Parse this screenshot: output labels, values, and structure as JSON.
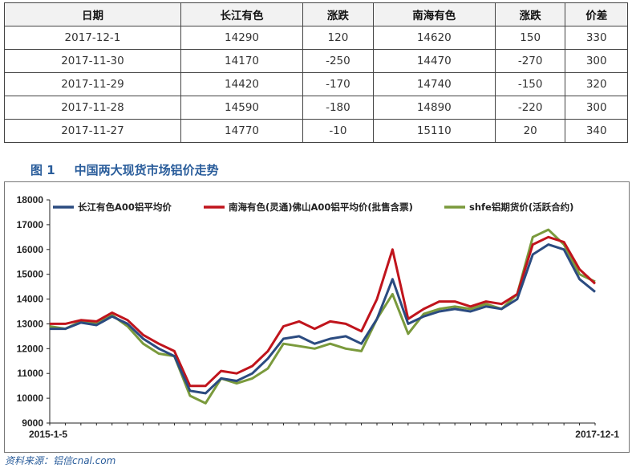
{
  "table": {
    "headers": [
      "日期",
      "长江有色",
      "涨跌",
      "南海有色",
      "涨跌",
      "价差"
    ],
    "rows": [
      [
        "2017-12-1",
        "14290",
        "120",
        "14620",
        "150",
        "330"
      ],
      [
        "2017-11-30",
        "14170",
        "-250",
        "14470",
        "-270",
        "300"
      ],
      [
        "2017-11-29",
        "14420",
        "-170",
        "14740",
        "-150",
        "320"
      ],
      [
        "2017-11-28",
        "14590",
        "-180",
        "14890",
        "-220",
        "300"
      ],
      [
        "2017-11-27",
        "14770",
        "-10",
        "15110",
        "20",
        "340"
      ]
    ]
  },
  "figure": {
    "number": "图 1",
    "title": "中国两大现货市场铝价走势"
  },
  "chart_data": {
    "type": "line",
    "x_start_label": "2015-1-5",
    "x_end_label": "2017-12-1",
    "ylim": [
      9000,
      18000
    ],
    "yticks": [
      9000,
      10000,
      11000,
      12000,
      13000,
      14000,
      15000,
      16000,
      17000,
      18000
    ],
    "grid": false,
    "legend_position": "top",
    "x": [
      "2015-01",
      "2015-02",
      "2015-03",
      "2015-04",
      "2015-05",
      "2015-06",
      "2015-07",
      "2015-08",
      "2015-09",
      "2015-10",
      "2015-11",
      "2015-12",
      "2016-01",
      "2016-02",
      "2016-03",
      "2016-04",
      "2016-05",
      "2016-06",
      "2016-07",
      "2016-08",
      "2016-09",
      "2016-10",
      "2016-11",
      "2016-12",
      "2017-01",
      "2017-02",
      "2017-03",
      "2017-04",
      "2017-05",
      "2017-06",
      "2017-07",
      "2017-08",
      "2017-09",
      "2017-10",
      "2017-11",
      "2017-12"
    ],
    "series": [
      {
        "name": "长江有色A00铝平均价",
        "color": "#2b4b80",
        "values": [
          12800,
          12800,
          13050,
          12950,
          13300,
          13000,
          12400,
          12000,
          11700,
          10300,
          10200,
          10800,
          10700,
          11000,
          11600,
          12400,
          12500,
          12200,
          12400,
          12500,
          12200,
          13200,
          14800,
          13000,
          13300,
          13500,
          13600,
          13500,
          13700,
          13600,
          14000,
          15800,
          16200,
          16000,
          14800,
          14290
        ]
      },
      {
        "name": "南海有色(灵通)佛山A00铝平均价(批售含票)",
        "color": "#c0141c",
        "values": [
          13000,
          13000,
          13150,
          13100,
          13450,
          13150,
          12550,
          12200,
          11900,
          10500,
          10500,
          11100,
          11000,
          11300,
          11900,
          12900,
          13100,
          12800,
          13100,
          13000,
          12700,
          14000,
          16000,
          13200,
          13600,
          13900,
          13900,
          13700,
          13900,
          13800,
          14200,
          16200,
          16500,
          16300,
          15200,
          14620
        ]
      },
      {
        "name": "shfe铝期货价(活跃合约)",
        "color": "#7a9a3c",
        "values": [
          12900,
          12800,
          13100,
          13000,
          13350,
          12900,
          12200,
          11800,
          11700,
          10100,
          9800,
          10800,
          10600,
          10800,
          11200,
          12200,
          12100,
          12000,
          12200,
          12000,
          11900,
          13200,
          14200,
          12600,
          13400,
          13600,
          13700,
          13600,
          13800,
          13600,
          14200,
          16500,
          16800,
          16200,
          15000,
          14700
        ]
      }
    ]
  },
  "source": "资料来源：铝信cnal.com"
}
